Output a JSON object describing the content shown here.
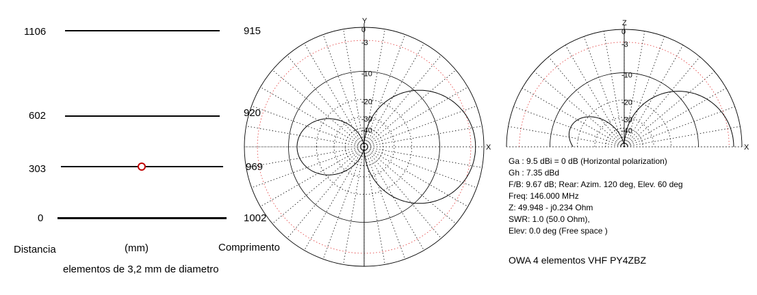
{
  "antenna": {
    "elements": [
      {
        "distance": "1106",
        "length": "915"
      },
      {
        "distance": "602",
        "length": "920"
      },
      {
        "distance": "303",
        "length": "969"
      },
      {
        "distance": "0",
        "length": "1002"
      }
    ],
    "labels": {
      "distance": "Distancia",
      "unit": "(mm)",
      "length": "Comprimento",
      "note": "elementos de 3,2 mm de diametro"
    }
  },
  "plots": {
    "ring_labels": [
      "0",
      "-3",
      "-10",
      "-20",
      "-30",
      "-40"
    ],
    "azimuth": {
      "axis_vertical": "Y",
      "axis_horizontal": "X"
    },
    "elevation": {
      "axis_vertical": "Z",
      "axis_horizontal": "X"
    }
  },
  "info": {
    "lines": [
      "Ga : 9.5 dBi = 0 dB  (Horizontal polarization)",
      "Gh : 7.35 dBd",
      "F/B: 9.67 dB; Rear: Azim. 120 deg,  Elev. 60 deg",
      "Freq: 146.000 MHz",
      "Z: 49.948 - j0.234 Ohm",
      "SWR: 1.0 (50.0 Ohm),",
      "Elev: 0.0 deg (Free space )"
    ],
    "title": "OWA 4 elementos VHF    PY4ZBZ"
  },
  "colors": {
    "grid": "#000000",
    "minus3_ring": "#e03030",
    "feed_point": "#c00000"
  }
}
